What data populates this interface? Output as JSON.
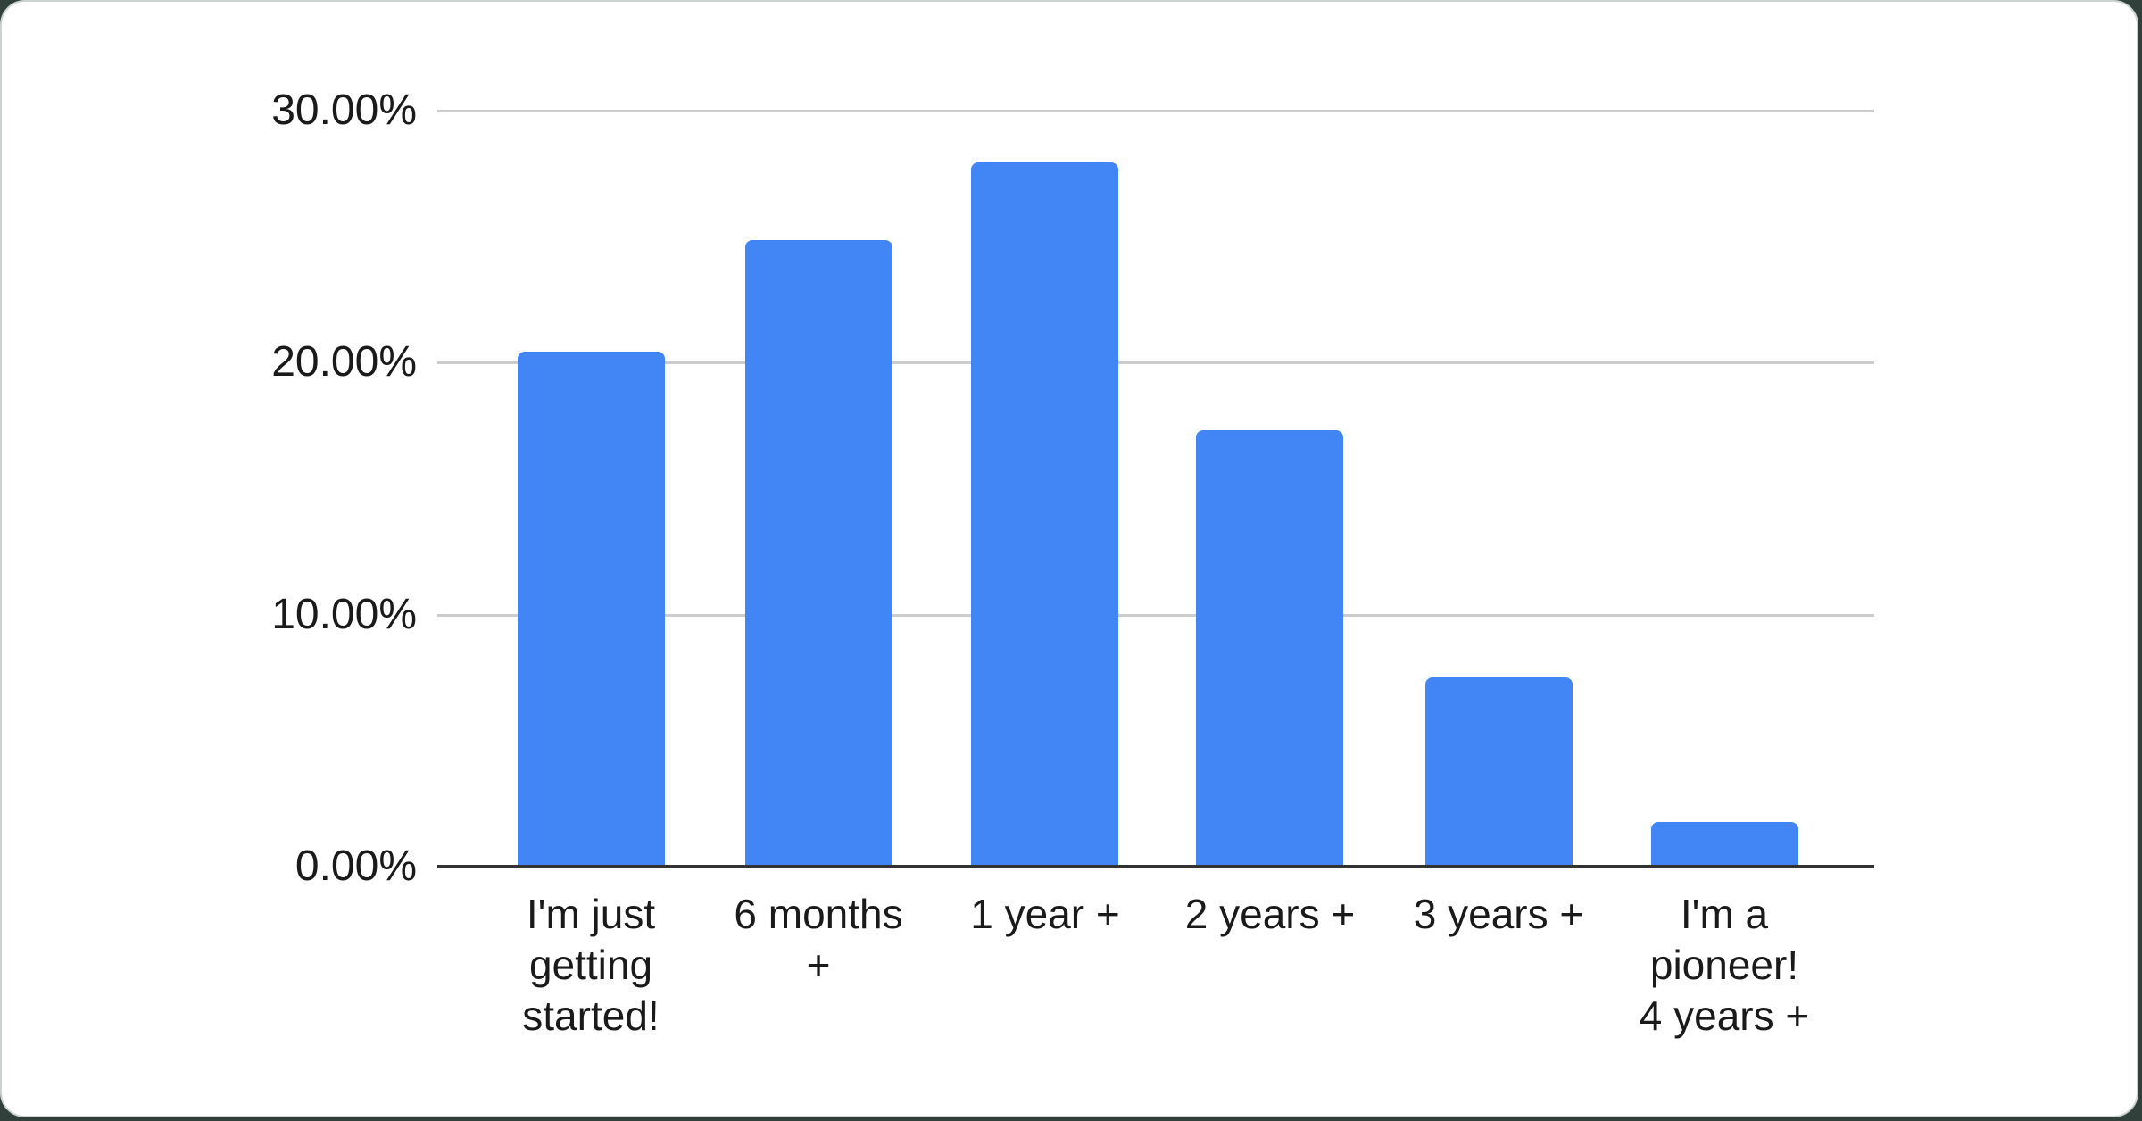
{
  "chart_data": {
    "type": "bar",
    "title": "",
    "categories": [
      "I'm just getting started!",
      "6 months +",
      "1 year +",
      "2 years +",
      "3 years +",
      "I'm a pioneer! 4 years +"
    ],
    "categories_wrapped": [
      [
        "I'm just",
        "getting",
        "started!"
      ],
      [
        "6 months",
        "+"
      ],
      [
        "1 year +"
      ],
      [
        "2 years +"
      ],
      [
        "3 years +"
      ],
      [
        "I'm a",
        "pioneer!",
        "4 years +"
      ]
    ],
    "values": [
      20.45,
      24.87,
      27.95,
      17.32,
      7.51,
      1.77
    ],
    "value_unit": "%",
    "y_ticks": [
      {
        "label": "30.00%",
        "value": 30
      },
      {
        "label": "20.00%",
        "value": 20
      },
      {
        "label": "10.00%",
        "value": 10
      },
      {
        "label": "0.00%",
        "value": 0
      }
    ],
    "ylim": [
      0,
      30
    ],
    "xlabel": "",
    "ylabel": "",
    "grid": true,
    "legend": "none",
    "colors": {
      "bar": "#4285f4",
      "gridline": "#cccccc",
      "axis_line": "#333333",
      "label_text": "#1a1a1a",
      "card_background": "#ffffff",
      "card_border": "#ccd4d0",
      "page_background": "#31403a"
    }
  }
}
